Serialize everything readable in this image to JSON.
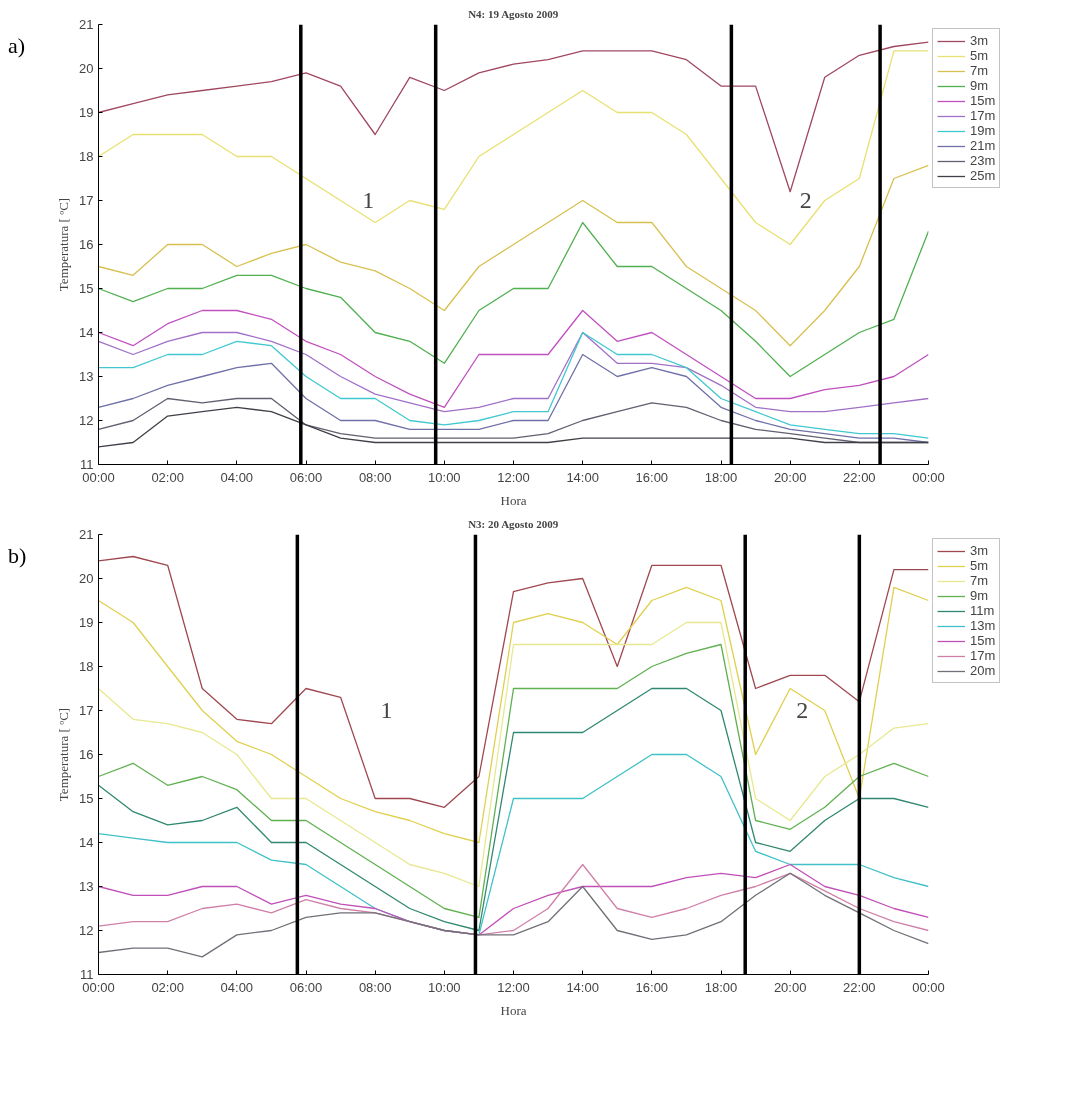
{
  "chart_data": [
    {
      "type": "line",
      "title": "N4: 19 Agosto 2009",
      "xlabel": "Hora",
      "ylabel": "Temperatura [ ºC]",
      "x": [
        0,
        1,
        2,
        3,
        4,
        5,
        6,
        7,
        8,
        9,
        10,
        11,
        12,
        13,
        14,
        15,
        16,
        17,
        18,
        19,
        20,
        21,
        22,
        23,
        24
      ],
      "xlim": [
        0,
        24
      ],
      "ylim": [
        11,
        21
      ],
      "xticks": [
        {
          "value": 0,
          "label": "00:00"
        },
        {
          "value": 2,
          "label": "02:00"
        },
        {
          "value": 4,
          "label": "04:00"
        },
        {
          "value": 6,
          "label": "06:00"
        },
        {
          "value": 8,
          "label": "08:00"
        },
        {
          "value": 10,
          "label": "10:00"
        },
        {
          "value": 12,
          "label": "12:00"
        },
        {
          "value": 14,
          "label": "14:00"
        },
        {
          "value": 16,
          "label": "16:00"
        },
        {
          "value": 18,
          "label": "18:00"
        },
        {
          "value": 20,
          "label": "20:00"
        },
        {
          "value": 22,
          "label": "22:00"
        },
        {
          "value": 24,
          "label": "00:00"
        }
      ],
      "yticks": [
        11,
        12,
        13,
        14,
        15,
        16,
        17,
        18,
        19,
        20,
        21
      ],
      "grid": false,
      "legend": "right",
      "series": [
        {
          "name": "3m",
          "color": "#a04860",
          "values": [
            19.0,
            19.2,
            19.4,
            19.5,
            19.6,
            19.7,
            19.9,
            19.6,
            18.5,
            19.8,
            19.5,
            19.9,
            20.1,
            20.2,
            20.4,
            20.4,
            20.4,
            20.2,
            19.6,
            19.6,
            17.2,
            19.8,
            20.3,
            20.5,
            20.6
          ]
        },
        {
          "name": "5m",
          "color": "#e8e070",
          "values": [
            18.0,
            18.5,
            18.5,
            18.5,
            18.0,
            18.0,
            17.5,
            17.0,
            16.5,
            17.0,
            16.8,
            18.0,
            18.5,
            19.0,
            19.5,
            19.0,
            19.0,
            18.5,
            17.5,
            16.5,
            16.0,
            17.0,
            17.5,
            20.4,
            20.4
          ]
        },
        {
          "name": "7m",
          "color": "#d8c050",
          "values": [
            15.5,
            15.3,
            16.0,
            16.0,
            15.5,
            15.8,
            16.0,
            15.6,
            15.4,
            15.0,
            14.5,
            15.5,
            16.0,
            16.5,
            17.0,
            16.5,
            16.5,
            15.5,
            15.0,
            14.5,
            13.7,
            14.5,
            15.5,
            17.5,
            17.8
          ]
        },
        {
          "name": "9m",
          "color": "#50b050",
          "values": [
            15.0,
            14.7,
            15.0,
            15.0,
            15.3,
            15.3,
            15.0,
            14.8,
            14.0,
            13.8,
            13.3,
            14.5,
            15.0,
            15.0,
            16.5,
            15.5,
            15.5,
            15.0,
            14.5,
            13.8,
            13.0,
            13.5,
            14.0,
            14.3,
            16.3
          ]
        },
        {
          "name": "15m",
          "color": "#c050c0",
          "values": [
            14.0,
            13.7,
            14.2,
            14.5,
            14.5,
            14.3,
            13.8,
            13.5,
            13.0,
            12.6,
            12.3,
            13.5,
            13.5,
            13.5,
            14.5,
            13.8,
            14.0,
            13.5,
            13.0,
            12.5,
            12.5,
            12.7,
            12.8,
            13.0,
            13.5
          ]
        },
        {
          "name": "17m",
          "color": "#a070c8",
          "values": [
            13.8,
            13.5,
            13.8,
            14.0,
            14.0,
            13.8,
            13.5,
            13.0,
            12.6,
            12.4,
            12.2,
            12.3,
            12.5,
            12.5,
            14.0,
            13.3,
            13.3,
            13.2,
            12.8,
            12.3,
            12.2,
            12.2,
            12.3,
            12.4,
            12.5
          ]
        },
        {
          "name": "19m",
          "color": "#40c8d0",
          "values": [
            13.2,
            13.2,
            13.5,
            13.5,
            13.8,
            13.7,
            13.0,
            12.5,
            12.5,
            12.0,
            11.9,
            12.0,
            12.2,
            12.2,
            14.0,
            13.5,
            13.5,
            13.2,
            12.5,
            12.2,
            11.9,
            11.8,
            11.7,
            11.7,
            11.6
          ]
        },
        {
          "name": "21m",
          "color": "#7070a8",
          "values": [
            12.3,
            12.5,
            12.8,
            13.0,
            13.2,
            13.3,
            12.5,
            12.0,
            12.0,
            11.8,
            11.8,
            11.8,
            12.0,
            12.0,
            13.5,
            13.0,
            13.2,
            13.0,
            12.3,
            12.0,
            11.8,
            11.7,
            11.6,
            11.6,
            11.5
          ]
        },
        {
          "name": "23m",
          "color": "#606070",
          "values": [
            11.8,
            12.0,
            12.5,
            12.4,
            12.5,
            12.5,
            11.9,
            11.7,
            11.6,
            11.6,
            11.6,
            11.6,
            11.6,
            11.7,
            12.0,
            12.2,
            12.4,
            12.3,
            12.0,
            11.8,
            11.7,
            11.6,
            11.5,
            11.5,
            11.5
          ]
        },
        {
          "name": "25m",
          "color": "#404048",
          "values": [
            11.4,
            11.5,
            12.1,
            12.2,
            12.3,
            12.2,
            11.9,
            11.6,
            11.5,
            11.5,
            11.5,
            11.5,
            11.5,
            11.5,
            11.6,
            11.6,
            11.6,
            11.6,
            11.6,
            11.6,
            11.6,
            11.5,
            11.5,
            11.5,
            11.5
          ]
        }
      ],
      "ref_lines": [
        {
          "axis": "x",
          "value": 5.85,
          "color": "#000000"
        },
        {
          "axis": "x",
          "value": 9.75,
          "color": "#000000"
        },
        {
          "axis": "x",
          "value": 18.3,
          "color": "#000000"
        },
        {
          "axis": "x",
          "value": 22.6,
          "color": "#000000"
        }
      ],
      "annotations": [
        "a)",
        "1",
        "2"
      ]
    },
    {
      "type": "line",
      "title": "N3: 20 Agosto 2009",
      "xlabel": "Hora",
      "ylabel": "Temperatura [ ºC]",
      "x": [
        0,
        1,
        2,
        3,
        4,
        5,
        6,
        7,
        8,
        9,
        10,
        11,
        12,
        13,
        14,
        15,
        16,
        17,
        18,
        19,
        20,
        21,
        22,
        23,
        24
      ],
      "xlim": [
        0,
        24
      ],
      "ylim": [
        11,
        21
      ],
      "xticks": [
        {
          "value": 0,
          "label": "00:00"
        },
        {
          "value": 2,
          "label": "02:00"
        },
        {
          "value": 4,
          "label": "04:00"
        },
        {
          "value": 6,
          "label": "06:00"
        },
        {
          "value": 8,
          "label": "08:00"
        },
        {
          "value": 10,
          "label": "10:00"
        },
        {
          "value": 12,
          "label": "12:00"
        },
        {
          "value": 14,
          "label": "14:00"
        },
        {
          "value": 16,
          "label": "16:00"
        },
        {
          "value": 18,
          "label": "18:00"
        },
        {
          "value": 20,
          "label": "20:00"
        },
        {
          "value": 22,
          "label": "22:00"
        },
        {
          "value": 24,
          "label": "00:00"
        }
      ],
      "yticks": [
        11,
        12,
        13,
        14,
        15,
        16,
        17,
        18,
        19,
        20,
        21
      ],
      "grid": false,
      "legend": "right",
      "series": [
        {
          "name": "3m",
          "color": "#a04850",
          "values": [
            20.4,
            20.5,
            20.3,
            17.5,
            16.8,
            16.7,
            17.5,
            17.3,
            15.0,
            15.0,
            14.8,
            15.5,
            19.7,
            19.9,
            20.0,
            18.0,
            20.3,
            20.3,
            20.3,
            17.5,
            17.8,
            17.8,
            17.2,
            20.2,
            20.2
          ]
        },
        {
          "name": "5m",
          "color": "#e0d050",
          "values": [
            19.5,
            19.0,
            18.0,
            17.0,
            16.3,
            16.0,
            15.5,
            15.0,
            14.7,
            14.5,
            14.2,
            14.0,
            19.0,
            19.2,
            19.0,
            18.5,
            19.5,
            19.8,
            19.5,
            16.0,
            17.5,
            17.0,
            15.0,
            19.8,
            19.5
          ]
        },
        {
          "name": "7m",
          "color": "#e8e890",
          "values": [
            17.5,
            16.8,
            16.7,
            16.5,
            16.0,
            15.0,
            15.0,
            14.5,
            14.0,
            13.5,
            13.3,
            13.0,
            18.5,
            18.5,
            18.5,
            18.5,
            18.5,
            19.0,
            19.0,
            15.0,
            14.5,
            15.5,
            16.0,
            16.6,
            16.7
          ]
        },
        {
          "name": "9m",
          "color": "#60b050",
          "values": [
            15.5,
            15.8,
            15.3,
            15.5,
            15.2,
            14.5,
            14.5,
            14.0,
            13.5,
            13.0,
            12.5,
            12.3,
            17.5,
            17.5,
            17.5,
            17.5,
            18.0,
            18.3,
            18.5,
            14.5,
            14.3,
            14.8,
            15.5,
            15.8,
            15.5
          ]
        },
        {
          "name": "11m",
          "color": "#308870",
          "values": [
            15.3,
            14.7,
            14.4,
            14.5,
            14.8,
            14.0,
            14.0,
            13.5,
            13.0,
            12.5,
            12.2,
            12.0,
            16.5,
            16.5,
            16.5,
            17.0,
            17.5,
            17.5,
            17.0,
            14.0,
            13.8,
            14.5,
            15.0,
            15.0,
            14.8
          ]
        },
        {
          "name": "13m",
          "color": "#40c0c8",
          "values": [
            14.2,
            14.1,
            14.0,
            14.0,
            14.0,
            13.6,
            13.5,
            13.0,
            12.5,
            12.2,
            12.0,
            11.9,
            15.0,
            15.0,
            15.0,
            15.5,
            16.0,
            16.0,
            15.5,
            13.8,
            13.5,
            13.5,
            13.5,
            13.2,
            13.0
          ]
        },
        {
          "name": "15m",
          "color": "#c050b8",
          "values": [
            13.0,
            12.8,
            12.8,
            13.0,
            13.0,
            12.6,
            12.8,
            12.6,
            12.5,
            12.2,
            12.0,
            11.9,
            12.5,
            12.8,
            13.0,
            13.0,
            13.0,
            13.2,
            13.3,
            13.2,
            13.5,
            13.0,
            12.8,
            12.5,
            12.3
          ]
        },
        {
          "name": "17m",
          "color": "#d080a8",
          "values": [
            12.1,
            12.2,
            12.2,
            12.5,
            12.6,
            12.4,
            12.7,
            12.5,
            12.4,
            12.2,
            12.0,
            11.9,
            12.0,
            12.5,
            13.5,
            12.5,
            12.3,
            12.5,
            12.8,
            13.0,
            13.3,
            12.9,
            12.5,
            12.2,
            12.0
          ]
        },
        {
          "name": "20m",
          "color": "#707078",
          "values": [
            11.5,
            11.6,
            11.6,
            11.4,
            11.9,
            12.0,
            12.3,
            12.4,
            12.4,
            12.2,
            12.0,
            11.9,
            11.9,
            12.2,
            13.0,
            12.0,
            11.8,
            11.9,
            12.2,
            12.8,
            13.3,
            12.8,
            12.4,
            12.0,
            11.7
          ]
        }
      ],
      "ref_lines": [
        {
          "axis": "x",
          "value": 5.75,
          "color": "#000000"
        },
        {
          "axis": "x",
          "value": 10.9,
          "color": "#000000"
        },
        {
          "axis": "x",
          "value": 18.7,
          "color": "#000000"
        },
        {
          "axis": "x",
          "value": 22.0,
          "color": "#000000"
        }
      ],
      "annotations": [
        "b)",
        "1",
        "2"
      ]
    }
  ]
}
